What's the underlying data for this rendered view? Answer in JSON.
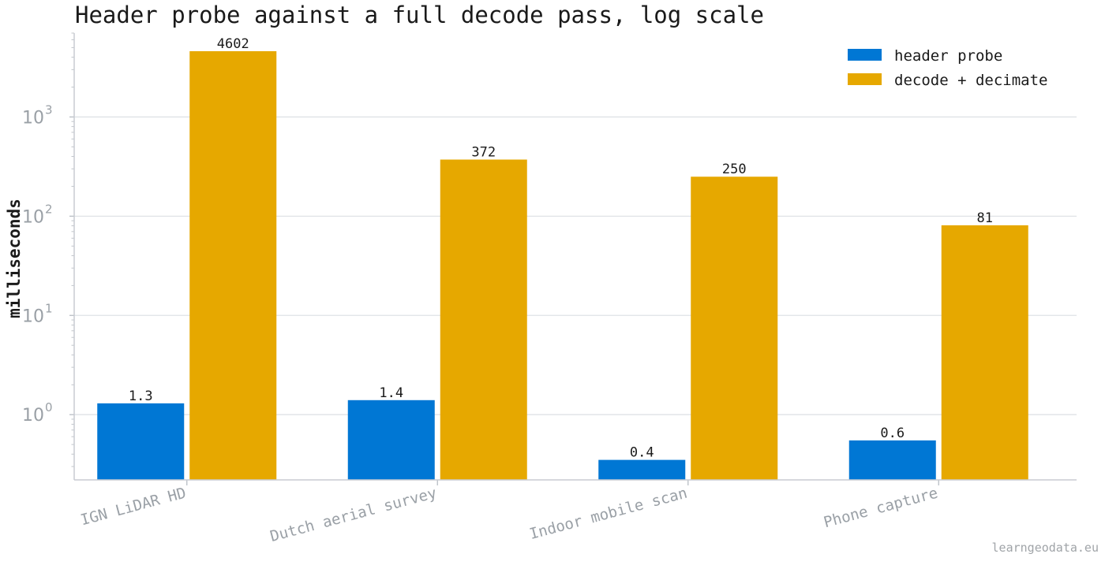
{
  "chart_data": {
    "type": "bar",
    "title": "Header probe against a full decode pass, log scale",
    "ylabel": "milliseconds",
    "xlabel": "",
    "yscale": "log",
    "ylim": [
      0.22,
      7000
    ],
    "yticks": [
      {
        "base": "10",
        "exp": "0",
        "value": 1
      },
      {
        "base": "10",
        "exp": "1",
        "value": 10
      },
      {
        "base": "10",
        "exp": "2",
        "value": 100
      },
      {
        "base": "10",
        "exp": "3",
        "value": 1000
      }
    ],
    "grid": true,
    "legend_position": "top-right",
    "categories": [
      "IGN LiDAR HD",
      "Dutch aerial survey",
      "Indoor mobile scan",
      "Phone capture"
    ],
    "series": [
      {
        "name": "header probe",
        "color": "#0077d4",
        "values": [
          1.3,
          1.4,
          0.35,
          0.55
        ],
        "labels": [
          "1.3",
          "1.4",
          "0.4",
          "0.6"
        ]
      },
      {
        "name": "decode + decimate",
        "color": "#e6a800",
        "values": [
          4602,
          372,
          250,
          81
        ],
        "labels": [
          "4602",
          "372",
          "250",
          "81"
        ]
      }
    ],
    "watermark": "learngeodata.eu"
  }
}
